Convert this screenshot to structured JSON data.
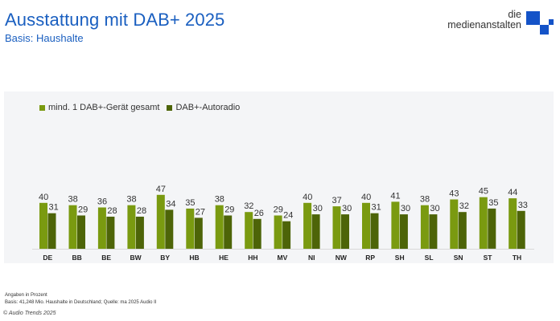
{
  "header": {
    "title": "Ausstattung mit DAB+ 2025",
    "subtitle": "Basis: Haushalte"
  },
  "logo": {
    "line1": "die",
    "line2": "medienanstalten",
    "color": "#1453c8"
  },
  "footer": {
    "note1": "Angaben in Prozent",
    "note2": "Basis: 41,248 Mio. Haushalte in Deutschland; Quelle: ma 2025 Audio II",
    "copyright": "© Audio Trends 2025"
  },
  "chart_data": {
    "type": "bar",
    "title": "Ausstattung mit DAB+ 2025",
    "subtitle": "Basis: Haushalte",
    "xlabel": "",
    "ylabel": "",
    "unit": "Prozent",
    "grid": false,
    "legend_position": "top-left",
    "ylim": [
      0,
      100
    ],
    "categories": [
      "DE",
      "BB",
      "BE",
      "BW",
      "BY",
      "HB",
      "HE",
      "HH",
      "MV",
      "NI",
      "NW",
      "RP",
      "SH",
      "SL",
      "SN",
      "ST",
      "TH"
    ],
    "series": [
      {
        "name": "mind. 1 DAB+-Gerät gesamt",
        "color": "#7a9a10",
        "values": [
          40,
          38,
          36,
          38,
          47,
          35,
          38,
          32,
          29,
          40,
          37,
          40,
          41,
          38,
          43,
          45,
          44
        ]
      },
      {
        "name": "DAB+-Autoradio",
        "color": "#4d6408",
        "values": [
          31,
          29,
          28,
          28,
          34,
          27,
          29,
          26,
          24,
          30,
          30,
          31,
          30,
          30,
          32,
          35,
          33
        ]
      }
    ]
  }
}
